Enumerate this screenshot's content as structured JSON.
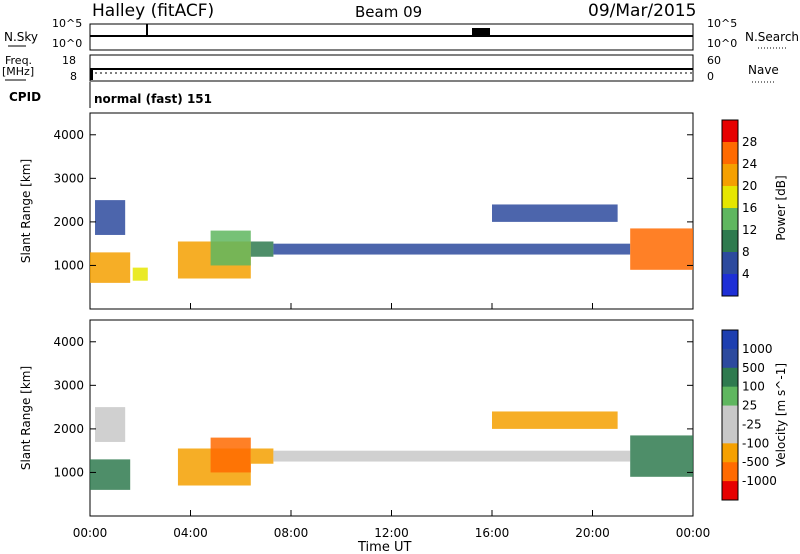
{
  "header": {
    "station": "Halley (fitACF)",
    "beam": "Beam 09",
    "date": "09/Mar/2015"
  },
  "strip_labels": {
    "nsky": "N.Sky",
    "nsearch": "N.Search",
    "freq_line1": "Freq.",
    "freq_line2": "[MHz]",
    "nave": "Nave",
    "cpid": "CPID",
    "cpid_value": "normal (fast) 151"
  },
  "strip_ticks": {
    "noise_top": "10^5",
    "noise_bottom": "10^0",
    "freq_left_top": "18",
    "freq_left_bottom": "8",
    "freq_right_top": "60",
    "freq_right_bottom": "0"
  },
  "colors": {
    "power_scale": [
      "#1e2fd6",
      "#2d4a9e",
      "#2f7a4f",
      "#5fb65f",
      "#e6e600",
      "#f5a000",
      "#ff6a00",
      "#e60000"
    ],
    "velocity_scale": [
      "#e60000",
      "#ff6a00",
      "#f5a000",
      "#c8c8c8",
      "#c8c8c8",
      "#5fb65f",
      "#2f7a4f",
      "#2d4a9e",
      "#1e3fb0"
    ]
  },
  "chart_data": [
    {
      "type": "heatmap",
      "name": "power",
      "ylabel": "Slant Range [km]",
      "xlabel": "Time UT",
      "ylim": [
        0,
        4500
      ],
      "yticks": [
        "1000",
        "2000",
        "3000",
        "4000"
      ],
      "xticks": [
        "00:00",
        "04:00",
        "08:00",
        "12:00",
        "16:00",
        "20:00",
        "00:00"
      ],
      "colorbar_label": "Power [dB]",
      "colorbar_ticks": [
        "4",
        "8",
        "12",
        "16",
        "20",
        "24",
        "28"
      ],
      "regions": [
        {
          "t0": 0.0,
          "t1": 1.6,
          "r0": 600,
          "r1": 1300,
          "level": 5
        },
        {
          "t0": 0.2,
          "t1": 1.4,
          "r0": 1700,
          "r1": 2500,
          "level": 1
        },
        {
          "t0": 1.7,
          "t1": 2.3,
          "r0": 650,
          "r1": 950,
          "level": 4
        },
        {
          "t0": 3.5,
          "t1": 6.4,
          "r0": 700,
          "r1": 1550,
          "level": 5
        },
        {
          "t0": 4.8,
          "t1": 6.4,
          "r0": 1000,
          "r1": 1800,
          "level": 3
        },
        {
          "t0": 6.4,
          "t1": 7.3,
          "r0": 1200,
          "r1": 1550,
          "level": 2
        },
        {
          "t0": 7.3,
          "t1": 21.5,
          "r0": 1250,
          "r1": 1500,
          "level": 1
        },
        {
          "t0": 16.0,
          "t1": 21.0,
          "r0": 2000,
          "r1": 2400,
          "level": 1
        },
        {
          "t0": 21.5,
          "t1": 24.0,
          "r0": 900,
          "r1": 1850,
          "level": 6
        }
      ]
    },
    {
      "type": "heatmap",
      "name": "velocity",
      "ylabel": "Slant Range [km]",
      "xlabel": "Time UT",
      "ylim": [
        0,
        4500
      ],
      "yticks": [
        "1000",
        "2000",
        "3000",
        "4000"
      ],
      "xticks": [
        "00:00",
        "04:00",
        "08:00",
        "12:00",
        "16:00",
        "20:00",
        "00:00"
      ],
      "colorbar_label": "Velocity [m s^-1]",
      "colorbar_ticks": [
        "1000",
        "500",
        "100",
        "25",
        "-25",
        "-100",
        "-500",
        "-1000"
      ],
      "regions": [
        {
          "t0": 0.0,
          "t1": 1.6,
          "r0": 600,
          "r1": 1300,
          "level": 6
        },
        {
          "t0": 0.2,
          "t1": 1.4,
          "r0": 1700,
          "r1": 2500,
          "level": 4
        },
        {
          "t0": 3.5,
          "t1": 6.4,
          "r0": 700,
          "r1": 1550,
          "level": 2
        },
        {
          "t0": 4.8,
          "t1": 6.4,
          "r0": 1000,
          "r1": 1800,
          "level": 1
        },
        {
          "t0": 6.4,
          "t1": 7.3,
          "r0": 1200,
          "r1": 1550,
          "level": 2
        },
        {
          "t0": 7.3,
          "t1": 21.5,
          "r0": 1250,
          "r1": 1500,
          "level": 4
        },
        {
          "t0": 16.0,
          "t1": 21.0,
          "r0": 2000,
          "r1": 2400,
          "level": 2
        },
        {
          "t0": 21.5,
          "t1": 24.0,
          "r0": 900,
          "r1": 1850,
          "level": 6
        }
      ]
    }
  ]
}
